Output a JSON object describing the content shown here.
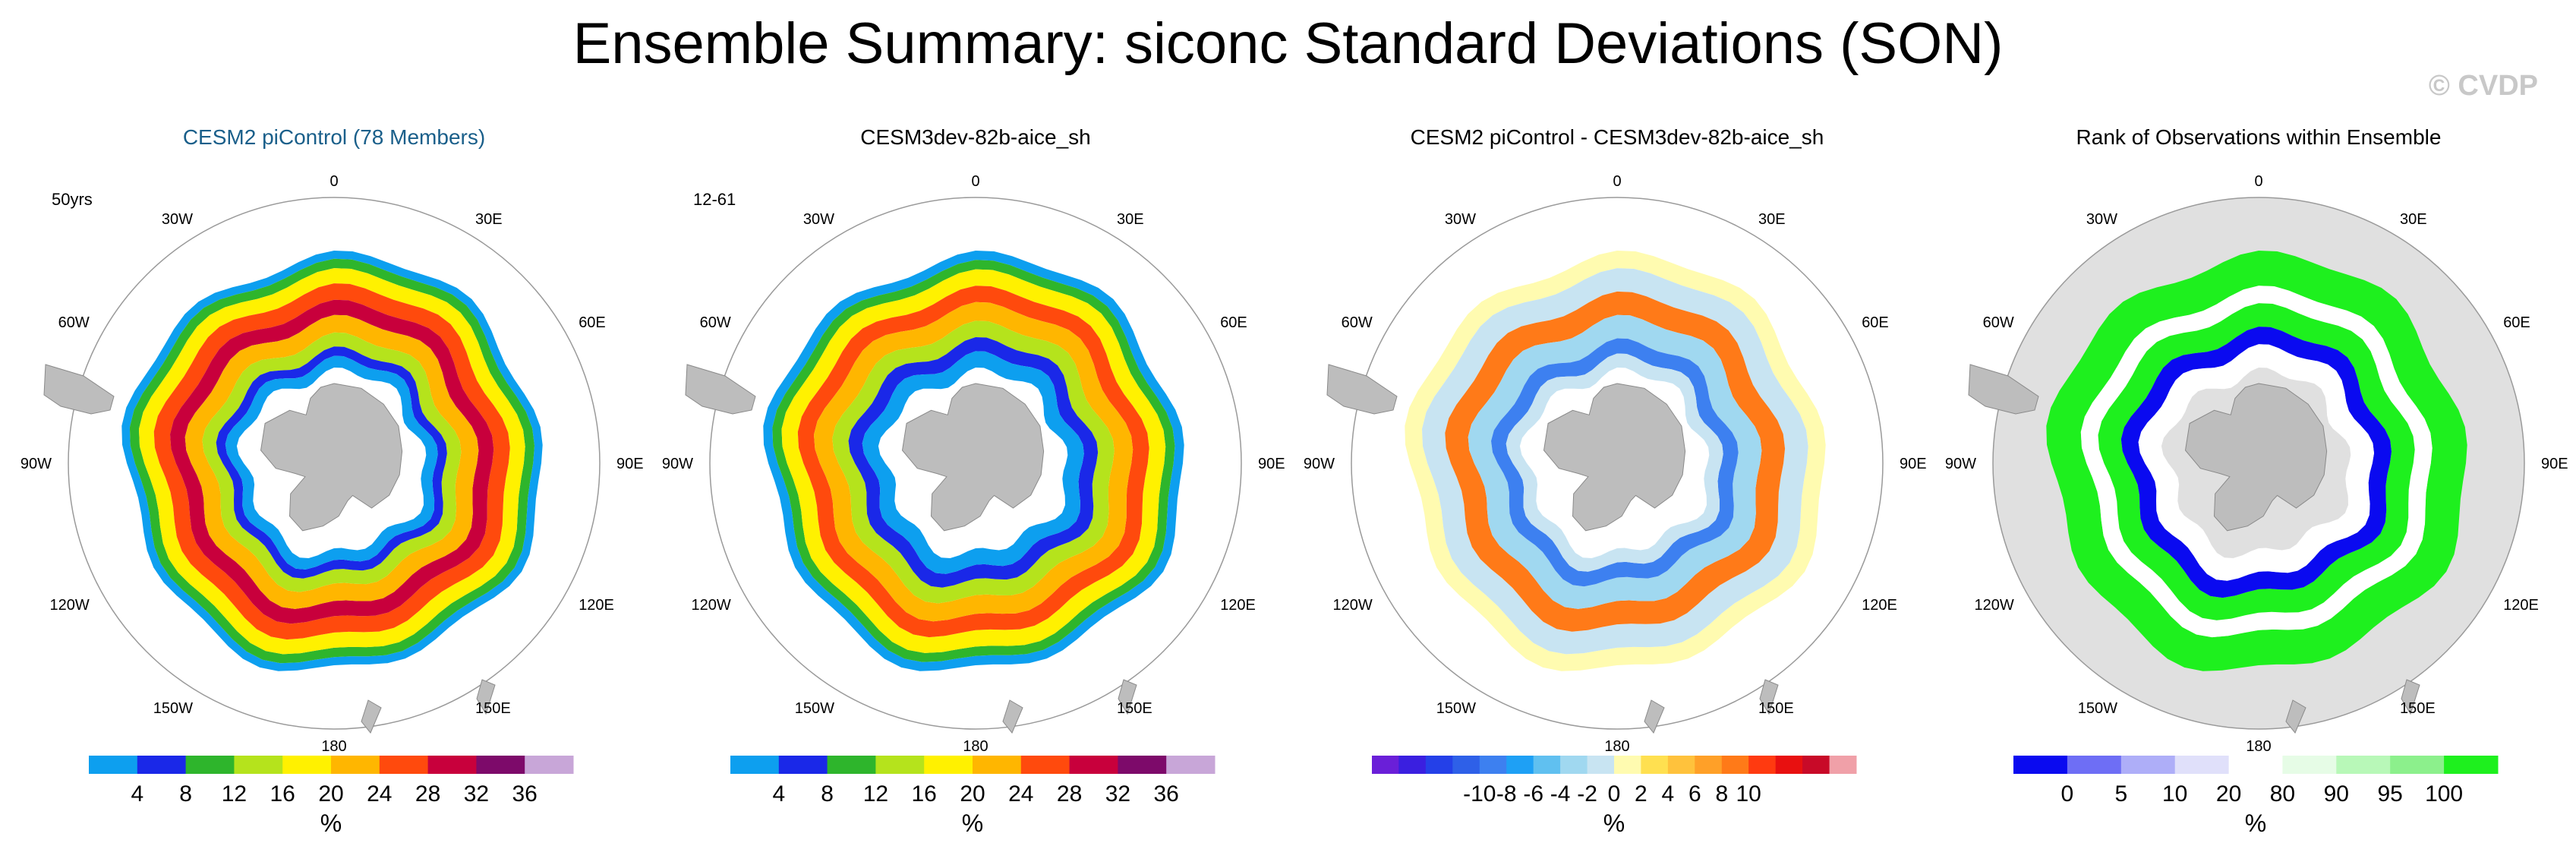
{
  "title": "Ensemble Summary: siconc Standard Deviations (SON)",
  "watermark": "© CVDP",
  "chart_data": [
    {
      "type": "heatmap",
      "title": "CESM2 piControl (78 Members)",
      "title_color": "#1a5f8a",
      "corner_label": "50yrs",
      "projection": "south polar stereographic",
      "longitude_labels": [
        "0",
        "30E",
        "60E",
        "90E",
        "120E",
        "150E",
        "180",
        "150W",
        "120W",
        "90W",
        "60W",
        "30W"
      ],
      "colorbar": {
        "colors": [
          "#0d9fef",
          "#1a28e8",
          "#2eb52c",
          "#b5e31c",
          "#fff100",
          "#ffb600",
          "#ff4a0d",
          "#c8003c",
          "#7d0a6a",
          "#c8a6d8"
        ],
        "labels": [
          "4",
          "8",
          "12",
          "16",
          "20",
          "24",
          "28",
          "32",
          "36"
        ],
        "unit": "%"
      },
      "field_rings": [
        {
          "from": 0.0,
          "value": 4,
          "color": "#0d9fef"
        },
        {
          "from": 0.07,
          "value": 12,
          "color": "#2eb52c"
        },
        {
          "from": 0.15,
          "value": 20,
          "color": "#fff100"
        },
        {
          "from": 0.28,
          "value": 28,
          "color": "#ff4a0d"
        },
        {
          "from": 0.42,
          "value": 32,
          "color": "#c8003c"
        },
        {
          "from": 0.55,
          "value": 24,
          "color": "#ffb600"
        },
        {
          "from": 0.7,
          "value": 16,
          "color": "#b5e31c"
        },
        {
          "from": 0.82,
          "value": 8,
          "color": "#1a28e8"
        },
        {
          "from": 0.9,
          "value": 4,
          "color": "#0d9fef"
        }
      ]
    },
    {
      "type": "heatmap",
      "title": "CESM3dev-82b-aice_sh",
      "title_color": "#000000",
      "corner_label": "12-61",
      "projection": "south polar stereographic",
      "longitude_labels": [
        "0",
        "30E",
        "60E",
        "90E",
        "120E",
        "150E",
        "180",
        "150W",
        "120W",
        "90W",
        "60W",
        "30W"
      ],
      "colorbar": {
        "colors": [
          "#0d9fef",
          "#1a28e8",
          "#2eb52c",
          "#b5e31c",
          "#fff100",
          "#ffb600",
          "#ff4a0d",
          "#c8003c",
          "#7d0a6a",
          "#c8a6d8"
        ],
        "labels": [
          "4",
          "8",
          "12",
          "16",
          "20",
          "24",
          "28",
          "32",
          "36"
        ],
        "unit": "%"
      },
      "field_rings": [
        {
          "from": 0.0,
          "value": 4,
          "color": "#0d9fef"
        },
        {
          "from": 0.08,
          "value": 12,
          "color": "#2eb52c"
        },
        {
          "from": 0.16,
          "value": 20,
          "color": "#fff100"
        },
        {
          "from": 0.3,
          "value": 28,
          "color": "#ff4a0d"
        },
        {
          "from": 0.44,
          "value": 24,
          "color": "#ffb600"
        },
        {
          "from": 0.6,
          "value": 16,
          "color": "#b5e31c"
        },
        {
          "from": 0.74,
          "value": 8,
          "color": "#1a28e8"
        },
        {
          "from": 0.86,
          "value": 4,
          "color": "#0d9fef"
        }
      ]
    },
    {
      "type": "heatmap",
      "title": "CESM2 piControl - CESM3dev-82b-aice_sh",
      "title_color": "#000000",
      "corner_label": "",
      "projection": "south polar stereographic",
      "longitude_labels": [
        "0",
        "30E",
        "60E",
        "90E",
        "120E",
        "150E",
        "180",
        "150W",
        "120W",
        "90W",
        "60W",
        "30W"
      ],
      "colorbar": {
        "colors": [
          "#6a1fd8",
          "#3a1fe0",
          "#2440e8",
          "#2e60e8",
          "#3d80f0",
          "#1ea0f5",
          "#60c0f0",
          "#a0d8f0",
          "#c8e4f2",
          "#fffbb0",
          "#ffe050",
          "#ffc23c",
          "#ffa028",
          "#ff7a18",
          "#ff3a10",
          "#e81010",
          "#c80a28",
          "#f0a0a8"
        ],
        "labels": [
          "-10",
          "-8",
          "-6",
          "-4",
          "-2",
          "0",
          "2",
          "4",
          "6",
          "8",
          "10"
        ],
        "unit": "%"
      },
      "field_rings": [
        {
          "from": 0.0,
          "value": 1,
          "color": "#fffbb0"
        },
        {
          "from": 0.15,
          "value": -1,
          "color": "#c8e4f2"
        },
        {
          "from": 0.35,
          "value": 6,
          "color": "#ff7a18"
        },
        {
          "from": 0.55,
          "value": -1,
          "color": "#a0d8f0"
        },
        {
          "from": 0.75,
          "value": -4,
          "color": "#3d80f0"
        },
        {
          "from": 0.88,
          "value": -1,
          "color": "#c8e4f2"
        }
      ]
    },
    {
      "type": "heatmap",
      "title": "Rank of Observations within Ensemble",
      "title_color": "#000000",
      "corner_label": "",
      "projection": "south polar stereographic",
      "longitude_labels": [
        "0",
        "30E",
        "60E",
        "90E",
        "120E",
        "150E",
        "180",
        "150W",
        "120W",
        "90W",
        "60W",
        "30W"
      ],
      "colorbar": {
        "colors": [
          "#0a0af0",
          "#6e6ef5",
          "#aeaef8",
          "#e0e0fa",
          "#ffffff",
          "#e6fce6",
          "#b8f8b8",
          "#8cf08c",
          "#1ef01e"
        ],
        "labels": [
          "0",
          "5",
          "10",
          "20",
          "80",
          "90",
          "95",
          "100"
        ],
        "unit": "%"
      },
      "field_rings": [
        {
          "from": 0.0,
          "value": 100,
          "color": "#1ef01e"
        },
        {
          "from": 0.3,
          "value": 50,
          "color": "#ffffff"
        },
        {
          "from": 0.45,
          "value": 100,
          "color": "#1ef01e"
        },
        {
          "from": 0.65,
          "value": 0,
          "color": "#0a0af0"
        },
        {
          "from": 0.8,
          "value": 50,
          "color": "#ffffff"
        }
      ]
    }
  ]
}
